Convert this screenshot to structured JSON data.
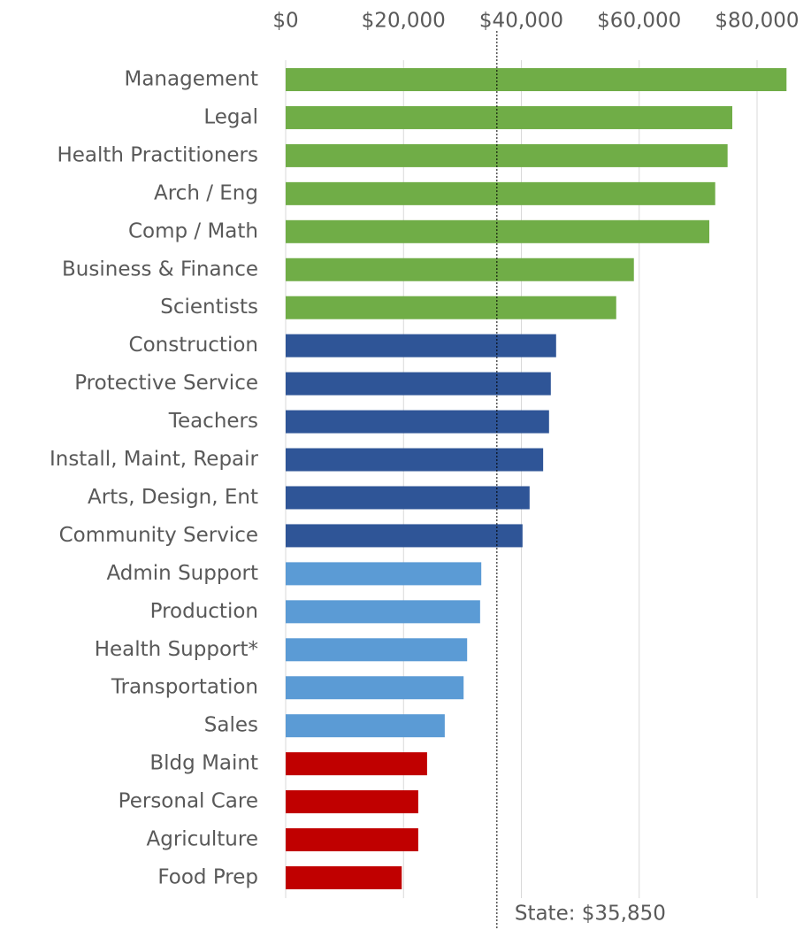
{
  "chart_data": {
    "type": "barh",
    "categories": [
      "Management",
      "Legal",
      "Health Practitioners",
      "Arch / Eng",
      "Comp / Math",
      "Business & Finance",
      "Scientists",
      "Construction",
      "Protective Service",
      "Teachers",
      "Install, Maint, Repair",
      "Arts, Design, Ent",
      "Community Service",
      "Admin Support",
      "Production",
      "Health Support*",
      "Transportation",
      "Sales",
      "Bldg Maint",
      "Personal Care",
      "Agriculture",
      "Food Prep"
    ],
    "values": [
      85000,
      75800,
      75000,
      72900,
      71900,
      59100,
      56100,
      45900,
      45000,
      44700,
      43700,
      41400,
      40200,
      33200,
      33000,
      30800,
      30200,
      27000,
      24000,
      22500,
      22500,
      19700
    ],
    "colors": [
      "#70ad47",
      "#70ad47",
      "#70ad47",
      "#70ad47",
      "#70ad47",
      "#70ad47",
      "#70ad47",
      "#2f5597",
      "#2f5597",
      "#2f5597",
      "#2f5597",
      "#2f5597",
      "#2f5597",
      "#5b9bd5",
      "#5b9bd5",
      "#5b9bd5",
      "#5b9bd5",
      "#5b9bd5",
      "#c00000",
      "#c00000",
      "#c00000",
      "#c00000"
    ],
    "xlim": [
      0,
      85000
    ],
    "xticks": [
      {
        "value": 0,
        "label": "$0"
      },
      {
        "value": 20000,
        "label": "$20,000"
      },
      {
        "value": 40000,
        "label": "$40,000"
      },
      {
        "value": 60000,
        "label": "$60,000"
      },
      {
        "value": 80000,
        "label": "$80,000"
      }
    ],
    "grid": true,
    "reference_line": {
      "value": 35850,
      "label": "State: $35,850"
    }
  }
}
